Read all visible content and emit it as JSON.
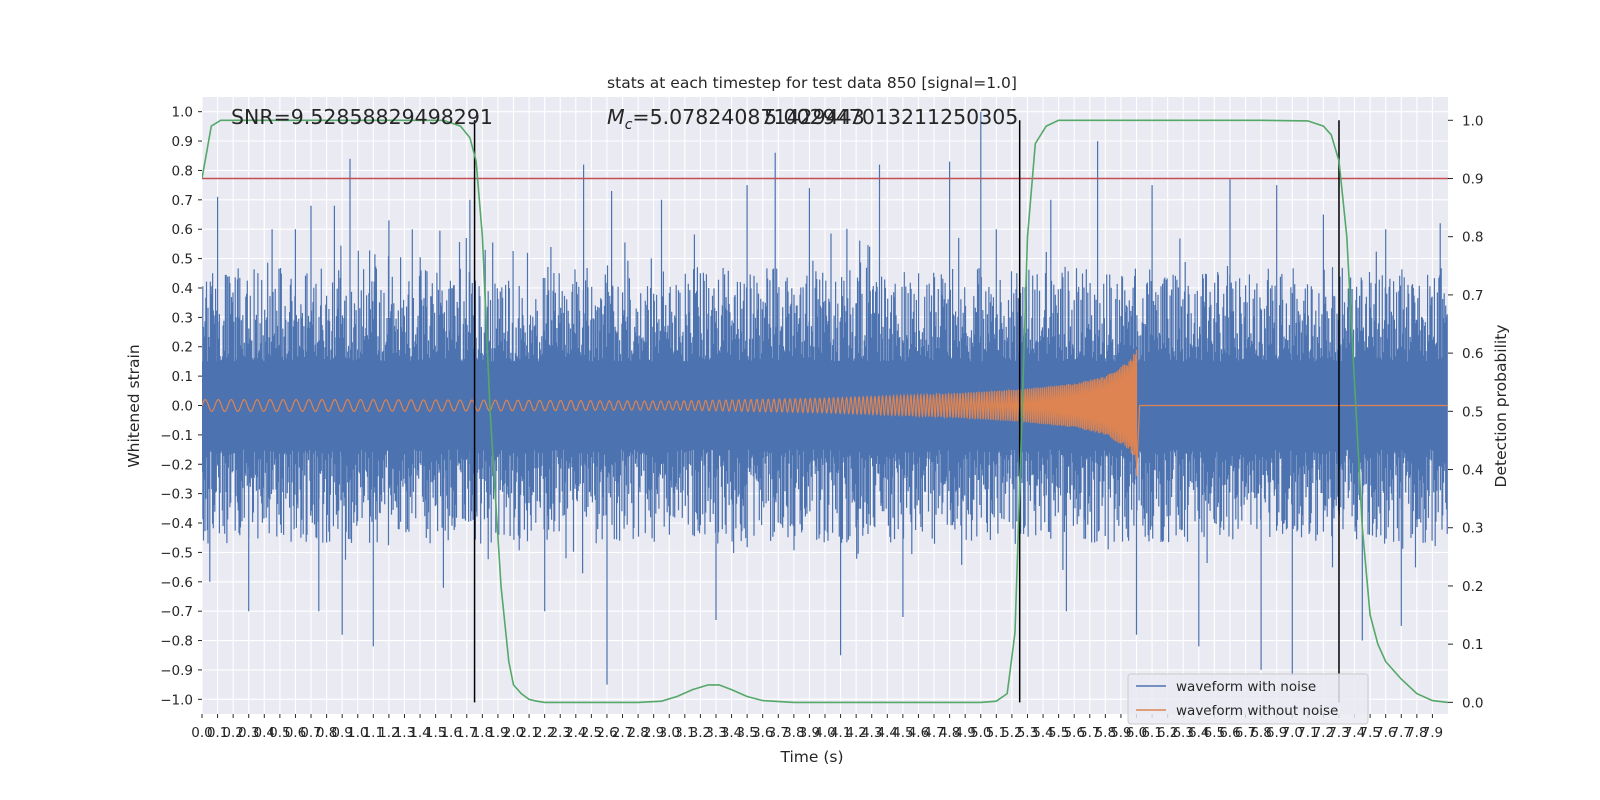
{
  "chart_data": {
    "type": "line",
    "title": "stats at each timestep for test data 850 [signal=1.0]",
    "xlabel": "Time (s)",
    "ylabel": "Whitened strain",
    "y2label": "Detection probability",
    "xlim": [
      0.0,
      8.0
    ],
    "ylim": [
      -1.05,
      1.05
    ],
    "y2lim": [
      -0.02,
      1.04
    ],
    "x_ticks": [
      0.0,
      0.1,
      0.2,
      0.3,
      0.4,
      0.5,
      0.6,
      0.7,
      0.8,
      0.9,
      1.0,
      1.1,
      1.2,
      1.3,
      1.4,
      1.5,
      1.6,
      1.7,
      1.8,
      1.9,
      2.0,
      2.1,
      2.2,
      2.3,
      2.4,
      2.5,
      2.6,
      2.7,
      2.8,
      2.9,
      3.0,
      3.1,
      3.2,
      3.3,
      3.4,
      3.5,
      3.6,
      3.7,
      3.8,
      3.9,
      4.0,
      4.1,
      4.2,
      4.3,
      4.4,
      4.5,
      4.6,
      4.7,
      4.8,
      4.9,
      5.0,
      5.1,
      5.2,
      5.3,
      5.4,
      5.5,
      5.6,
      5.7,
      5.8,
      5.9,
      6.0,
      6.1,
      6.2,
      6.3,
      6.4,
      6.5,
      6.6,
      6.7,
      6.8,
      6.9,
      7.0,
      7.1,
      7.2,
      7.3,
      7.4,
      7.5,
      7.6,
      7.7,
      7.8,
      7.9
    ],
    "x_tick_labels": [
      "0.0",
      "0.1",
      "0.2",
      "0.3",
      "0.4",
      "0.5",
      "0.6",
      "0.7",
      "0.8",
      "0.9",
      "1.0",
      "1.1",
      "1.2",
      "1.3",
      "1.4",
      "1.5",
      "1.6",
      "1.7",
      "1.8",
      "1.9",
      "2.0",
      "2.1",
      "2.2",
      "2.3",
      "2.4",
      "2.5",
      "2.6",
      "2.7",
      "2.8",
      "2.9",
      "3.0",
      "3.1",
      "3.2",
      "3.3",
      "3.4",
      "3.5",
      "3.6",
      "3.7",
      "3.8",
      "3.9",
      "4.0",
      "4.1",
      "4.2",
      "4.3",
      "4.4",
      "4.5",
      "4.6",
      "4.7",
      "4.8",
      "4.9",
      "5.0",
      "5.1",
      "5.2",
      "5.3",
      "5.4",
      "5.5",
      "5.6",
      "5.7",
      "5.8",
      "5.9",
      "6.0",
      "6.1",
      "6.2",
      "6.3",
      "6.4",
      "6.5",
      "6.6",
      "6.7",
      "6.8",
      "6.9",
      "7.0",
      "7.1",
      "7.2",
      "7.3",
      "7.4",
      "7.5",
      "7.6",
      "7.7",
      "7.8",
      "7.9"
    ],
    "y_ticks": [
      1.0,
      0.9,
      0.8,
      0.7,
      0.6,
      0.5,
      0.4,
      0.3,
      0.2,
      0.1,
      0.0,
      -0.1,
      -0.2,
      -0.3,
      -0.4,
      -0.5,
      -0.6,
      -0.7,
      -0.8,
      -0.9,
      -1.0
    ],
    "y_tick_labels": [
      "1.0",
      "0.9",
      "0.8",
      "0.7",
      "0.6",
      "0.5",
      "0.4",
      "0.3",
      "0.2",
      "0.1",
      "0.0",
      "−0.1",
      "−0.2",
      "−0.3",
      "−0.4",
      "−0.5",
      "−0.6",
      "−0.7",
      "−0.8",
      "−0.9",
      "−1.0"
    ],
    "y2_ticks": [
      1.0,
      0.9,
      0.8,
      0.7,
      0.6,
      0.5,
      0.4,
      0.3,
      0.2,
      0.1,
      0.0
    ],
    "y2_tick_labels": [
      "1.0",
      "0.9",
      "0.8",
      "0.7",
      "0.6",
      "0.5",
      "0.4",
      "0.3",
      "0.2",
      "0.1",
      "0.0"
    ],
    "grid": true,
    "legend_position": "lower-right",
    "annotations": {
      "snr": "SNR=9.52858829498291",
      "mc_prefix": "M",
      "mc_subscript": "c",
      "mc_value": "=5.078240871429443",
      "overlap": "5.002947013211250305"
    },
    "threshold": {
      "axis": "y2",
      "value": 0.9,
      "color": "#c44e52"
    },
    "vlines": [
      1.75,
      5.25,
      7.3
    ],
    "series": [
      {
        "name": "waveform with noise",
        "color": "#4c72b0",
        "axis": "y",
        "kind": "noise",
        "envelope_upper": 0.45,
        "envelope_lower": -0.45,
        "peaks": [
          {
            "x": 0.1,
            "y": 0.71
          },
          {
            "x": 0.05,
            "y": -0.6
          },
          {
            "x": 0.3,
            "y": -0.7
          },
          {
            "x": 0.45,
            "y": 0.6
          },
          {
            "x": 0.6,
            "y": 0.6
          },
          {
            "x": 0.7,
            "y": 0.68
          },
          {
            "x": 0.75,
            "y": -0.7
          },
          {
            "x": 0.85,
            "y": 0.68
          },
          {
            "x": 0.95,
            "y": 0.84
          },
          {
            "x": 0.9,
            "y": -0.78
          },
          {
            "x": 1.1,
            "y": -0.82
          },
          {
            "x": 1.2,
            "y": 0.63
          },
          {
            "x": 1.35,
            "y": 0.6
          },
          {
            "x": 1.55,
            "y": -0.62
          },
          {
            "x": 1.72,
            "y": 0.7
          },
          {
            "x": 2.2,
            "y": -0.7
          },
          {
            "x": 2.45,
            "y": 0.82
          },
          {
            "x": 2.6,
            "y": -0.95
          },
          {
            "x": 2.63,
            "y": 0.73
          },
          {
            "x": 2.95,
            "y": 0.7
          },
          {
            "x": 3.3,
            "y": -0.73
          },
          {
            "x": 3.5,
            "y": 0.75
          },
          {
            "x": 3.68,
            "y": 0.86
          },
          {
            "x": 3.9,
            "y": 0.74
          },
          {
            "x": 4.1,
            "y": -0.85
          },
          {
            "x": 4.35,
            "y": 0.82
          },
          {
            "x": 4.5,
            "y": -0.72
          },
          {
            "x": 4.8,
            "y": 0.83
          },
          {
            "x": 5.0,
            "y": 1.0
          },
          {
            "x": 5.1,
            "y": 0.6
          },
          {
            "x": 5.45,
            "y": 0.7
          },
          {
            "x": 5.55,
            "y": -0.7
          },
          {
            "x": 5.75,
            "y": 0.9
          },
          {
            "x": 6.0,
            "y": -0.78
          },
          {
            "x": 6.1,
            "y": 0.75
          },
          {
            "x": 6.4,
            "y": -0.82
          },
          {
            "x": 6.6,
            "y": 0.77
          },
          {
            "x": 6.8,
            "y": -0.9
          },
          {
            "x": 6.9,
            "y": 0.75
          },
          {
            "x": 7.0,
            "y": -0.92
          },
          {
            "x": 7.2,
            "y": 0.65
          },
          {
            "x": 7.45,
            "y": -0.8
          },
          {
            "x": 7.6,
            "y": 0.6
          },
          {
            "x": 7.7,
            "y": -0.75
          },
          {
            "x": 7.95,
            "y": 0.62
          }
        ]
      },
      {
        "name": "waveform without noise",
        "color": "#dd8452",
        "axis": "y",
        "kind": "chirp",
        "amplitude_envelope": [
          {
            "x": 0.0,
            "y": 0.02
          },
          {
            "x": 1.0,
            "y": 0.02
          },
          {
            "x": 2.0,
            "y": 0.018
          },
          {
            "x": 3.0,
            "y": 0.015
          },
          {
            "x": 4.0,
            "y": 0.025
          },
          {
            "x": 4.8,
            "y": 0.04
          },
          {
            "x": 5.25,
            "y": 0.055
          },
          {
            "x": 5.6,
            "y": 0.075
          },
          {
            "x": 5.8,
            "y": 0.1
          },
          {
            "x": 5.95,
            "y": 0.15
          },
          {
            "x": 6.0,
            "y": 0.19
          },
          {
            "x": 6.01,
            "y": 0.0
          },
          {
            "x": 8.0,
            "y": 0.0
          }
        ],
        "merger": {
          "x": 6.0,
          "y_max": 0.19,
          "y_min": -0.24
        }
      },
      {
        "name": "",
        "color": "#55a868",
        "axis": "y2",
        "kind": "line",
        "x": [
          0.0,
          0.06,
          0.12,
          0.2,
          0.4,
          0.8,
          1.2,
          1.55,
          1.66,
          1.72,
          1.76,
          1.8,
          1.85,
          1.92,
          1.97,
          2.0,
          2.05,
          2.1,
          2.15,
          2.2,
          2.3,
          2.5,
          2.8,
          2.95,
          3.05,
          3.15,
          3.25,
          3.32,
          3.4,
          3.5,
          3.6,
          3.8,
          4.2,
          4.6,
          5.0,
          5.1,
          5.17,
          5.22,
          5.26,
          5.3,
          5.35,
          5.42,
          5.5,
          5.7,
          6.2,
          6.8,
          7.1,
          7.2,
          7.25,
          7.3,
          7.35,
          7.4,
          7.45,
          7.5,
          7.55,
          7.6,
          7.7,
          7.8,
          7.9,
          8.0
        ],
        "values": [
          0.9,
          0.99,
          1.0,
          1.0,
          1.0,
          1.0,
          1.0,
          1.0,
          0.99,
          0.97,
          0.93,
          0.8,
          0.5,
          0.2,
          0.07,
          0.03,
          0.015,
          0.005,
          0.002,
          0.0,
          0.0,
          0.0,
          0.0,
          0.002,
          0.01,
          0.022,
          0.03,
          0.03,
          0.022,
          0.01,
          0.003,
          0.0,
          0.0,
          0.0,
          0.0,
          0.002,
          0.015,
          0.12,
          0.45,
          0.8,
          0.96,
          0.99,
          1.0,
          1.0,
          1.0,
          1.0,
          0.999,
          0.99,
          0.975,
          0.93,
          0.8,
          0.55,
          0.3,
          0.15,
          0.1,
          0.07,
          0.04,
          0.015,
          0.003,
          0.0
        ]
      }
    ]
  }
}
